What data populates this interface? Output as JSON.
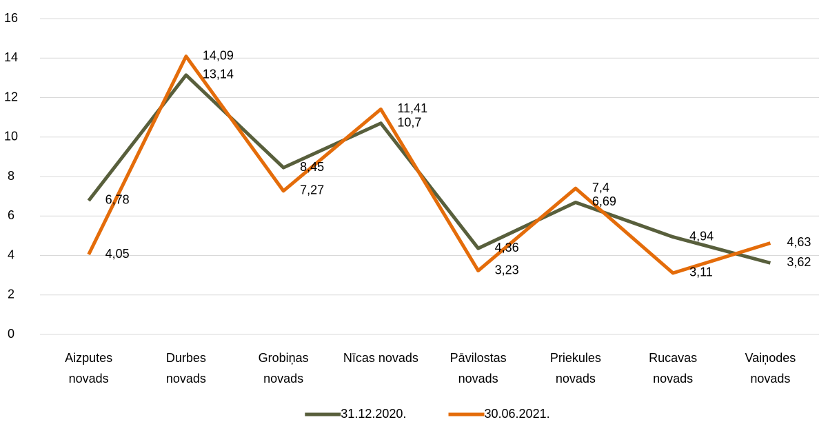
{
  "chart_data": {
    "type": "line",
    "categories": [
      "Aizputes novads",
      "Durbes novads",
      "Grobiņas novads",
      "Nīcas novads",
      "Pāvilostas novads",
      "Priekules novads",
      "Rucavas novads",
      "Vaiņodes novads"
    ],
    "series": [
      {
        "name": "31.12.2020.",
        "color": "#585f3c",
        "values": [
          6.78,
          13.14,
          8.45,
          10.7,
          4.36,
          6.69,
          4.94,
          3.62
        ],
        "value_labels": [
          "6,78",
          "13,14",
          "8,45",
          "10,7",
          "4,36",
          "6,69",
          "4,94",
          "3,62"
        ]
      },
      {
        "name": "30.06.2021.",
        "color": "#e46c0a",
        "values": [
          4.05,
          14.09,
          7.27,
          11.41,
          3.23,
          7.4,
          3.11,
          4.63
        ],
        "value_labels": [
          "4,05",
          "14,09",
          "7,27",
          "11,41",
          "3,23",
          "7,4",
          "3,11",
          "4,63"
        ]
      }
    ],
    "ylim": [
      0,
      16
    ],
    "yticks": [
      0,
      2,
      4,
      6,
      8,
      10,
      12,
      14,
      16
    ],
    "grid": true,
    "legend": "bottom"
  }
}
